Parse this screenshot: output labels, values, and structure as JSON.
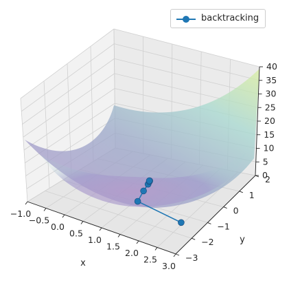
{
  "chart_data": {
    "type": "surface3d",
    "title": "",
    "xlabel": "x",
    "ylabel": "y",
    "zlabel": "",
    "xlim": [
      -1.0,
      3.0
    ],
    "ylim": [
      -3,
      2
    ],
    "zlim": [
      0,
      40
    ],
    "x_ticks": [
      "−1.0",
      "−0.5",
      "0.0",
      "0.5",
      "1.0",
      "1.5",
      "2.0",
      "2.5",
      "3.0"
    ],
    "y_ticks": [
      "−3",
      "−2",
      "−1",
      "0",
      "1",
      "2"
    ],
    "z_ticks": [
      "0",
      "5",
      "10",
      "15",
      "20",
      "25",
      "30",
      "35",
      "40"
    ],
    "surface": {
      "colormap": "viridis",
      "alpha": 0.4
    },
    "grid": true,
    "legend": {
      "placement": "top-right",
      "entries": [
        "backtracking"
      ]
    },
    "series": [
      {
        "name": "backtracking",
        "color": "#1f77b4",
        "x": [
          2.5,
          1.2,
          1.1,
          1.05,
          1.02,
          1.01,
          1.0
        ],
        "y": [
          -1.5,
          -1.2,
          -0.6,
          -0.2,
          -0.05,
          0.0,
          0.0
        ],
        "z": [
          0.5,
          0.3,
          0.2,
          0.1,
          0.05,
          0.02,
          0.0
        ]
      }
    ]
  }
}
